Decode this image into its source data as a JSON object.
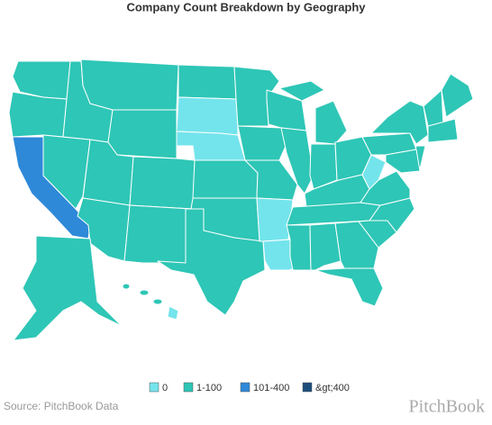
{
  "title": "Company Count Breakdown by Geography",
  "legend": [
    {
      "label": "0",
      "color": "#74e4ec"
    },
    {
      "label": "1-100",
      "color": "#2ec6b6"
    },
    {
      "label": "101-400",
      "color": "#2e89d8"
    },
    {
      "label": "&gt;400",
      "color": "#1b4f7c"
    }
  ],
  "source": "Source: PitchBook Data",
  "logo": "PitchBook"
}
